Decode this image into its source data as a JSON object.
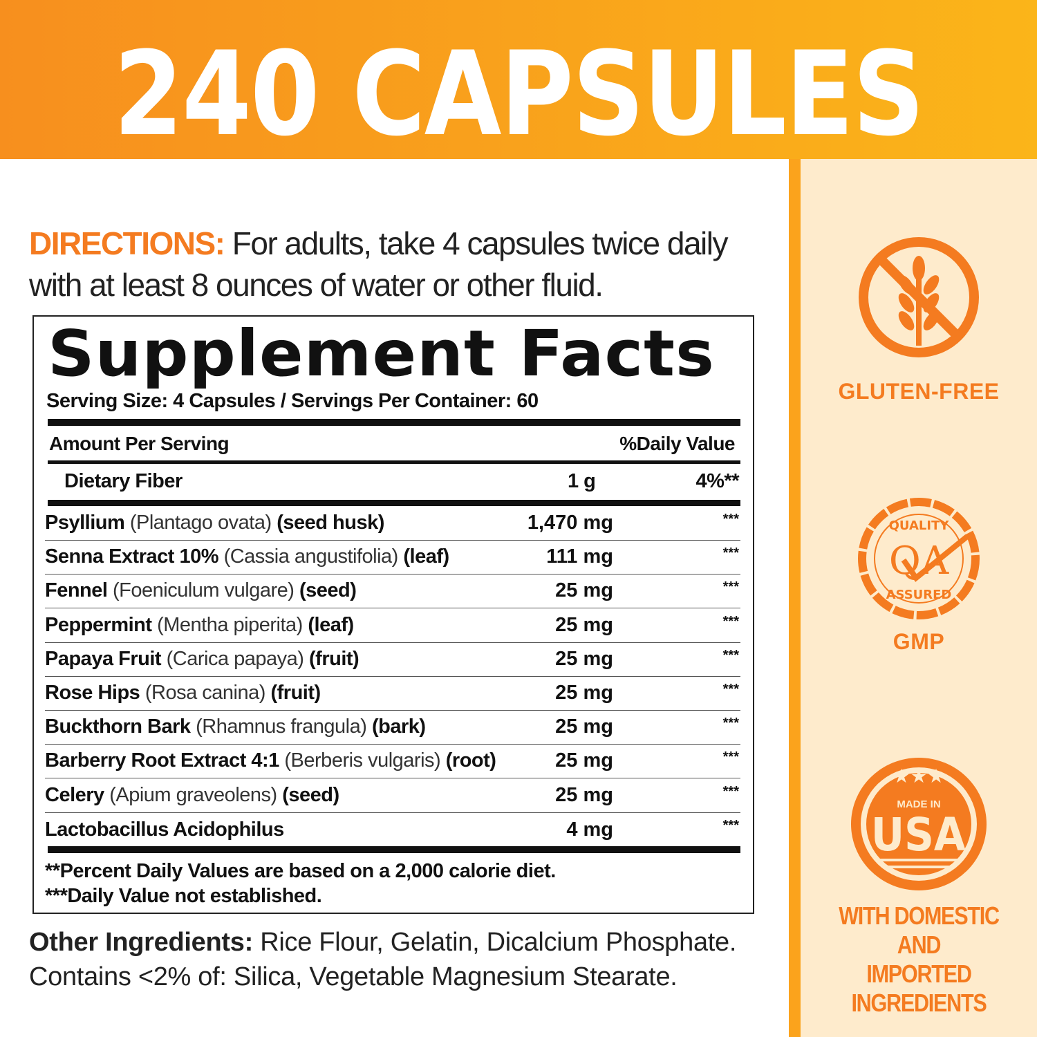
{
  "header": {
    "title": "240 CAPSULES"
  },
  "directions": {
    "label": "DIRECTIONS:",
    "text": " For adults, take 4 capsules twice daily with at least 8 ounces of water or other fluid."
  },
  "facts": {
    "title": "Supplement Facts",
    "serving": "Serving Size: 4 Capsules  /  Servings Per Container: 60",
    "amount_header": "Amount Per Serving",
    "dv_header": "%Daily Value",
    "fiber": {
      "name": "Dietary Fiber",
      "amount": "1 g",
      "dv": "4%**"
    },
    "rows": [
      {
        "name": "Psyllium",
        "latin": " (Plantago ovata) ",
        "part": "(seed husk)",
        "amount": "1,470 mg",
        "dv": "***"
      },
      {
        "name": "Senna Extract 10%",
        "latin": " (Cassia angustifolia) ",
        "part": "(leaf)",
        "amount": "111 mg",
        "dv": "***"
      },
      {
        "name": "Fennel",
        "latin": " (Foeniculum vulgare) ",
        "part": "(seed)",
        "amount": "25 mg",
        "dv": "***"
      },
      {
        "name": "Peppermint",
        "latin": " (Mentha piperita) ",
        "part": "(leaf)",
        "amount": "25 mg",
        "dv": "***"
      },
      {
        "name": "Papaya Fruit",
        "latin": " (Carica papaya) ",
        "part": "(fruit)",
        "amount": "25 mg",
        "dv": "***"
      },
      {
        "name": "Rose Hips",
        "latin": " (Rosa canina) ",
        "part": "(fruit)",
        "amount": "25 mg",
        "dv": "***"
      },
      {
        "name": "Buckthorn Bark",
        "latin": " (Rhamnus frangula) ",
        "part": "(bark)",
        "amount": "25 mg",
        "dv": "***"
      },
      {
        "name": "Barberry Root Extract 4:1",
        "latin": " (Berberis vulgaris) ",
        "part": "(root)",
        "amount": "25 mg",
        "dv": "***"
      },
      {
        "name": "Celery",
        "latin": " (Apium graveolens) ",
        "part": "(seed)",
        "amount": "25 mg",
        "dv": "***"
      },
      {
        "name": "Lactobacillus Acidophilus",
        "latin": "",
        "part": "",
        "amount": "4 mg",
        "dv": "***"
      }
    ],
    "footnote1": "**Percent Daily Values are based on a 2,000 calorie diet.",
    "footnote2": "***Daily Value not established."
  },
  "other": {
    "label": "Other Ingredients:",
    "text": " Rice Flour, Gelatin, Dicalcium Phosphate.",
    "line2": "Contains <2% of: Silica, Vegetable Magnesium Stearate."
  },
  "badges": {
    "gluten": {
      "icon": "no-wheat-icon",
      "label": "GLUTEN-FREE"
    },
    "gmp": {
      "icon": "quality-assured-seal-icon",
      "label": "GMP",
      "seal_top": "QUALITY",
      "seal_mid": "QA",
      "seal_bottom": "ASSURED"
    },
    "usa": {
      "icon": "made-in-usa-icon",
      "label_top": "MADE IN",
      "label_main": "USA",
      "caption1": "WITH DOMESTIC AND",
      "caption2": "IMPORTED INGREDIENTS"
    }
  },
  "colors": {
    "accent": "#f47b20",
    "header_start": "#f78f1e",
    "header_end": "#fbb519",
    "panel": "#feebcc"
  }
}
